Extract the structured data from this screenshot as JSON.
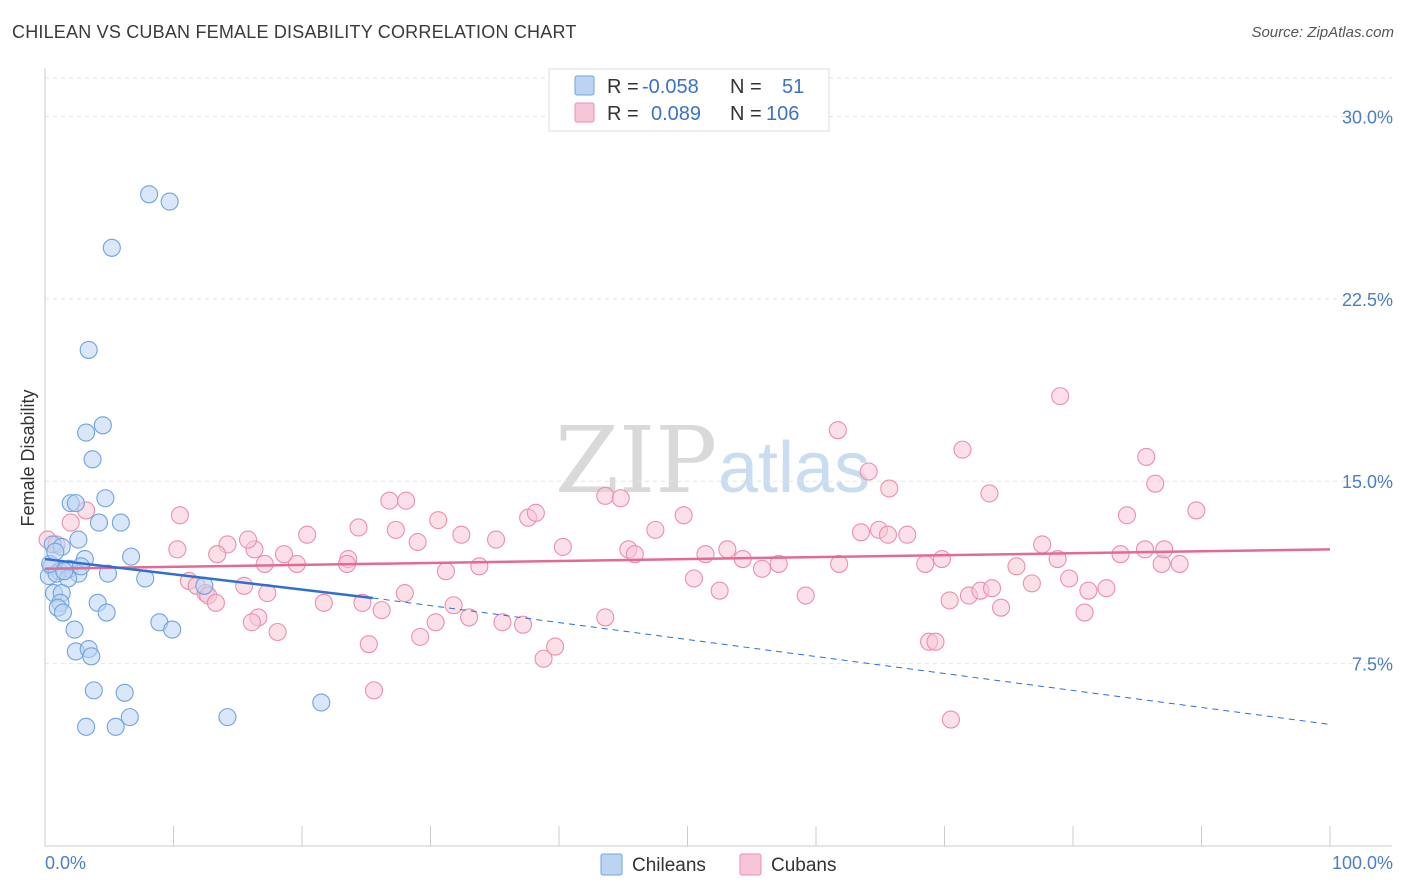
{
  "title": "CHILEAN VS CUBAN FEMALE DISABILITY CORRELATION CHART",
  "source": "Source: ZipAtlas.com",
  "watermark": {
    "zip": "ZIP",
    "atlas": "atlas"
  },
  "colors": {
    "chileans": "#6fa3e0",
    "chileans_fill": "#bcd4f2",
    "chileans_line": "#2f6fcf",
    "cubans": "#eb8fae",
    "cubans_fill": "#f7c6d6",
    "cubans_line": "#e36a95",
    "axis_text": "#4a7ec6",
    "grid": "#e3e3e3"
  },
  "legend": {
    "r_label": "R =",
    "n_label": "N =",
    "chileans": {
      "r": "-0.058",
      "n": "51"
    },
    "cubans": {
      "r": "0.089",
      "n": "106"
    }
  },
  "chart_data": {
    "type": "scatter",
    "title": "CHILEAN VS CUBAN FEMALE DISABILITY CORRELATION CHART",
    "xlabel": "",
    "ylabel": "Female Disability",
    "xlim": [
      0,
      100
    ],
    "ylim": [
      0,
      31.5
    ],
    "x_tick_labels": [
      "0.0%",
      "100.0%"
    ],
    "y_ticks": [
      7.5,
      15.0,
      22.5,
      30.0
    ],
    "y_tick_labels": [
      "7.5%",
      "15.0%",
      "22.5%",
      "30.0%"
    ],
    "grid": "horizontal dashed",
    "legend_position": "top-center",
    "series": [
      {
        "name": "Chileans",
        "trend": {
          "x": [
            0,
            25.5
          ],
          "y": [
            11.8,
            10.2
          ],
          "dashed_extension": {
            "x": [
              25.5,
              100
            ],
            "y": [
              10.2,
              5.0
            ]
          }
        },
        "points": [
          [
            8.1,
            26.8
          ],
          [
            9.7,
            26.5
          ],
          [
            5.2,
            24.6
          ],
          [
            3.4,
            20.4
          ],
          [
            4.5,
            17.3
          ],
          [
            3.2,
            17.0
          ],
          [
            3.7,
            15.9
          ],
          [
            4.7,
            14.3
          ],
          [
            2.0,
            14.1
          ],
          [
            2.4,
            14.1
          ],
          [
            4.2,
            13.3
          ],
          [
            5.9,
            13.3
          ],
          [
            0.6,
            12.4
          ],
          [
            1.3,
            12.3
          ],
          [
            2.6,
            12.6
          ],
          [
            3.1,
            11.8
          ],
          [
            6.7,
            11.9
          ],
          [
            0.5,
            11.5
          ],
          [
            1.1,
            11.3
          ],
          [
            1.9,
            11.4
          ],
          [
            0.3,
            11.1
          ],
          [
            0.9,
            11.2
          ],
          [
            2.6,
            11.2
          ],
          [
            4.9,
            11.2
          ],
          [
            1.8,
            11.0
          ],
          [
            7.8,
            11.0
          ],
          [
            12.4,
            10.7
          ],
          [
            0.7,
            10.4
          ],
          [
            1.3,
            10.4
          ],
          [
            1.2,
            10.0
          ],
          [
            4.1,
            10.0
          ],
          [
            1.0,
            9.8
          ],
          [
            1.4,
            9.6
          ],
          [
            4.8,
            9.6
          ],
          [
            8.9,
            9.2
          ],
          [
            9.9,
            8.9
          ],
          [
            2.3,
            8.9
          ],
          [
            2.4,
            8.0
          ],
          [
            3.4,
            8.1
          ],
          [
            3.6,
            7.8
          ],
          [
            3.8,
            6.4
          ],
          [
            6.2,
            6.3
          ],
          [
            21.5,
            5.9
          ],
          [
            6.6,
            5.3
          ],
          [
            14.2,
            5.3
          ],
          [
            3.2,
            4.9
          ],
          [
            5.5,
            4.9
          ],
          [
            0.4,
            11.6
          ],
          [
            1.5,
            11.3
          ],
          [
            2.8,
            11.5
          ],
          [
            0.8,
            12.1
          ]
        ]
      },
      {
        "name": "Cubans",
        "trend": {
          "x": [
            0,
            100
          ],
          "y": [
            11.4,
            12.2
          ]
        },
        "points": [
          [
            79.0,
            18.5
          ],
          [
            85.7,
            16.0
          ],
          [
            86.4,
            14.9
          ],
          [
            73.5,
            14.5
          ],
          [
            43.6,
            14.4
          ],
          [
            44.8,
            14.3
          ],
          [
            61.7,
            17.1
          ],
          [
            64.1,
            15.4
          ],
          [
            65.7,
            14.7
          ],
          [
            71.4,
            16.3
          ],
          [
            49.7,
            13.6
          ],
          [
            47.5,
            13.0
          ],
          [
            45.4,
            12.2
          ],
          [
            40.3,
            12.3
          ],
          [
            37.6,
            13.5
          ],
          [
            38.2,
            13.7
          ],
          [
            35.1,
            12.6
          ],
          [
            32.4,
            12.8
          ],
          [
            31.2,
            11.3
          ],
          [
            33.8,
            11.5
          ],
          [
            30.6,
            13.4
          ],
          [
            29.0,
            12.5
          ],
          [
            27.3,
            13.0
          ],
          [
            28.1,
            14.2
          ],
          [
            26.8,
            14.2
          ],
          [
            24.4,
            13.1
          ],
          [
            23.6,
            11.8
          ],
          [
            20.4,
            12.8
          ],
          [
            19.6,
            11.6
          ],
          [
            18.6,
            12.0
          ],
          [
            17.1,
            11.6
          ],
          [
            16.3,
            12.2
          ],
          [
            15.8,
            12.6
          ],
          [
            14.2,
            12.4
          ],
          [
            13.4,
            12.0
          ],
          [
            10.3,
            12.2
          ],
          [
            10.5,
            13.6
          ],
          [
            11.2,
            10.9
          ],
          [
            11.8,
            10.7
          ],
          [
            12.5,
            10.4
          ],
          [
            12.7,
            10.3
          ],
          [
            13.3,
            10.0
          ],
          [
            15.5,
            10.7
          ],
          [
            16.6,
            9.4
          ],
          [
            16.1,
            9.2
          ],
          [
            17.3,
            10.4
          ],
          [
            18.1,
            8.8
          ],
          [
            21.7,
            10.0
          ],
          [
            23.5,
            11.6
          ],
          [
            24.7,
            10.0
          ],
          [
            25.2,
            8.3
          ],
          [
            26.2,
            9.7
          ],
          [
            28.0,
            10.4
          ],
          [
            29.2,
            8.6
          ],
          [
            30.4,
            9.2
          ],
          [
            31.8,
            9.9
          ],
          [
            33.0,
            9.4
          ],
          [
            35.6,
            9.2
          ],
          [
            37.2,
            9.1
          ],
          [
            38.8,
            7.7
          ],
          [
            39.7,
            8.2
          ],
          [
            43.6,
            9.4
          ],
          [
            45.9,
            12.0
          ],
          [
            50.5,
            11.0
          ],
          [
            51.4,
            12.0
          ],
          [
            53.1,
            12.2
          ],
          [
            52.5,
            10.5
          ],
          [
            54.3,
            11.8
          ],
          [
            55.8,
            11.4
          ],
          [
            57.1,
            11.6
          ],
          [
            59.2,
            10.3
          ],
          [
            61.8,
            11.6
          ],
          [
            63.5,
            12.9
          ],
          [
            64.9,
            13.0
          ],
          [
            65.6,
            12.8
          ],
          [
            67.1,
            12.8
          ],
          [
            68.5,
            11.6
          ],
          [
            69.8,
            11.8
          ],
          [
            70.4,
            10.1
          ],
          [
            71.9,
            10.3
          ],
          [
            72.8,
            10.5
          ],
          [
            73.7,
            10.6
          ],
          [
            74.4,
            9.8
          ],
          [
            75.6,
            11.5
          ],
          [
            76.8,
            10.8
          ],
          [
            77.6,
            12.4
          ],
          [
            78.8,
            11.8
          ],
          [
            79.7,
            11.0
          ],
          [
            80.9,
            9.6
          ],
          [
            81.2,
            10.5
          ],
          [
            82.6,
            10.6
          ],
          [
            83.7,
            12.0
          ],
          [
            84.2,
            13.6
          ],
          [
            85.6,
            12.2
          ],
          [
            86.9,
            11.6
          ],
          [
            87.1,
            12.2
          ],
          [
            88.3,
            11.6
          ],
          [
            89.6,
            13.8
          ],
          [
            68.8,
            8.4
          ],
          [
            69.3,
            8.4
          ],
          [
            70.5,
            5.2
          ],
          [
            25.6,
            6.4
          ],
          [
            0.2,
            12.6
          ],
          [
            0.9,
            12.4
          ],
          [
            2.0,
            13.3
          ],
          [
            3.2,
            13.8
          ]
        ]
      }
    ]
  },
  "bottom_legend": {
    "chileans": "Chileans",
    "cubans": "Cubans"
  }
}
